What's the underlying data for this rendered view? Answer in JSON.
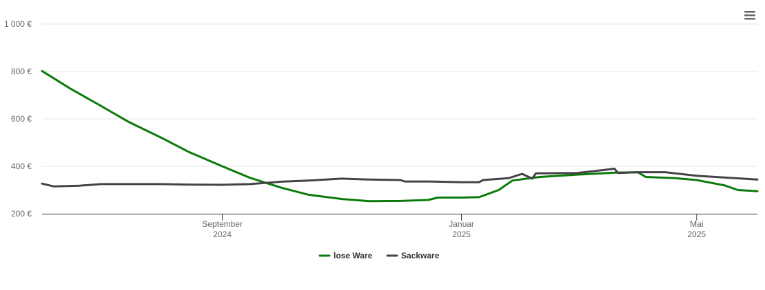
{
  "chart_data": {
    "type": "line",
    "title": "",
    "xlabel": "",
    "ylabel": "",
    "ylim": [
      200,
      1000
    ],
    "xlim": [
      "2024-06-01",
      "2025-06-01"
    ],
    "y_ticks": [
      {
        "value": 200,
        "label": "200 €"
      },
      {
        "value": 400,
        "label": "400 €"
      },
      {
        "value": 600,
        "label": "600 €"
      },
      {
        "value": 800,
        "label": "800 €"
      },
      {
        "value": 1000,
        "label": "1 000 €"
      }
    ],
    "x_ticks": [
      {
        "date": "2024-09-01",
        "label": "September",
        "sublabel": "2024"
      },
      {
        "date": "2025-01-01",
        "label": "Januar",
        "sublabel": "2025"
      },
      {
        "date": "2025-05-01",
        "label": "Mai",
        "sublabel": "2025"
      }
    ],
    "grid": true,
    "legend_position": "bottom-center",
    "series": [
      {
        "name": "lose Ware",
        "color": "#0a7a0a",
        "points": [
          [
            "2024-06-01",
            802
          ],
          [
            "2024-06-15",
            730
          ],
          [
            "2024-07-01",
            655
          ],
          [
            "2024-07-15",
            588
          ],
          [
            "2024-08-01",
            520
          ],
          [
            "2024-08-15",
            460
          ],
          [
            "2024-09-01",
            400
          ],
          [
            "2024-09-15",
            352
          ],
          [
            "2024-10-01",
            310
          ],
          [
            "2024-10-15",
            280
          ],
          [
            "2024-11-01",
            262
          ],
          [
            "2024-11-15",
            253
          ],
          [
            "2024-12-01",
            254
          ],
          [
            "2024-12-15",
            258
          ],
          [
            "2024-12-20",
            268
          ],
          [
            "2025-01-01",
            268
          ],
          [
            "2025-01-10",
            270
          ],
          [
            "2025-01-15",
            285
          ],
          [
            "2025-01-20",
            300
          ],
          [
            "2025-01-27",
            340
          ],
          [
            "2025-02-10",
            355
          ],
          [
            "2025-03-01",
            365
          ],
          [
            "2025-03-20",
            373
          ],
          [
            "2025-04-01",
            375
          ],
          [
            "2025-04-05",
            355
          ],
          [
            "2025-04-20",
            350
          ],
          [
            "2025-05-01",
            342
          ],
          [
            "2025-05-15",
            320
          ],
          [
            "2025-05-22",
            300
          ],
          [
            "2025-06-01",
            295
          ]
        ]
      },
      {
        "name": "Sackware",
        "color": "#434348",
        "points": [
          [
            "2024-06-01",
            327
          ],
          [
            "2024-06-07",
            315
          ],
          [
            "2024-06-20",
            318
          ],
          [
            "2024-07-01",
            325
          ],
          [
            "2024-08-01",
            325
          ],
          [
            "2024-08-15",
            323
          ],
          [
            "2024-09-01",
            322
          ],
          [
            "2024-09-15",
            325
          ],
          [
            "2024-10-01",
            335
          ],
          [
            "2024-10-15",
            340
          ],
          [
            "2024-11-01",
            348
          ],
          [
            "2024-11-15",
            344
          ],
          [
            "2024-12-01",
            342
          ],
          [
            "2024-12-03",
            336
          ],
          [
            "2024-12-15",
            336
          ],
          [
            "2025-01-01",
            333
          ],
          [
            "2025-01-10",
            333
          ],
          [
            "2025-01-12",
            342
          ],
          [
            "2025-01-25",
            350
          ],
          [
            "2025-02-01",
            368
          ],
          [
            "2025-02-06",
            348
          ],
          [
            "2025-02-08",
            370
          ],
          [
            "2025-03-01",
            372
          ],
          [
            "2025-03-15",
            385
          ],
          [
            "2025-03-20",
            390
          ],
          [
            "2025-03-22",
            372
          ],
          [
            "2025-04-01",
            375
          ],
          [
            "2025-04-15",
            375
          ],
          [
            "2025-05-01",
            360
          ],
          [
            "2025-06-01",
            344
          ]
        ]
      }
    ]
  },
  "menu": {
    "icon": "hamburger-menu-icon"
  }
}
